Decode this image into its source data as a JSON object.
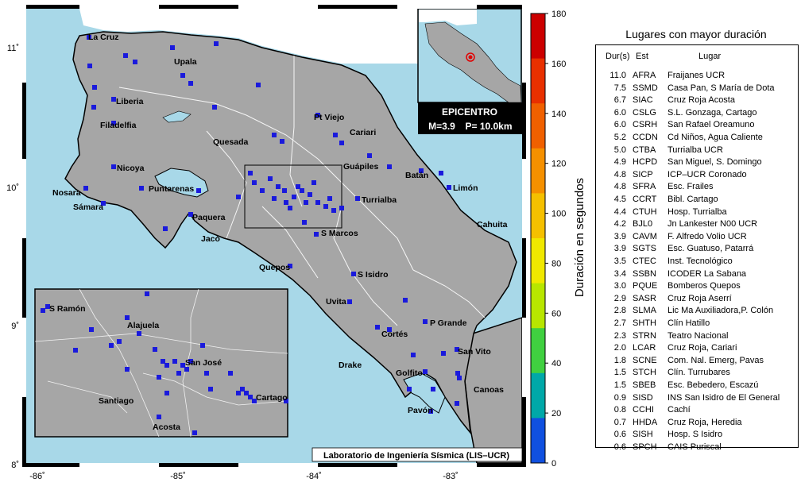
{
  "map": {
    "lon_ticks": [
      "-86˚",
      "-85˚",
      "-84˚",
      "-83˚"
    ],
    "lat_ticks": [
      "11˚",
      "10˚",
      "9˚",
      "8˚"
    ],
    "credit": "Laboratorio de Ingeniería Sísmica (LIS–UCR)",
    "place_names": {
      "la_cruz": "La Cruz",
      "upala": "Upala",
      "liberia": "Liberia",
      "filadelfia": "Filadelfia",
      "nicoya": "Nicoya",
      "nosara": "Nosara",
      "samara": "Sámara",
      "puntarenas": "Puntarenas",
      "paquera": "Paquera",
      "jaco": "Jacó",
      "quesada": "Quesada",
      "pt_viejo": "Pt Viejo",
      "cariari": "Cariari",
      "guapiles": "Guápiles",
      "batan": "Batán",
      "limon": "Limón",
      "turrialba": "Turrialba",
      "cahuita": "Cahuita",
      "s_marcos": "S Marcos",
      "quepos": "Quepos",
      "s_isidro": "S Isidro",
      "uvita": "Uvita",
      "p_grande": "P Grande",
      "cortes": "Cortés",
      "s_vito": "San Vito",
      "drake": "Drake",
      "golfito": "Golfito",
      "canoas": "Canoas",
      "pavon": "Pavón"
    },
    "inset_names": {
      "s_ramon": "S Ramón",
      "alajuela": "Alajuela",
      "san_jose": "San José",
      "santiago": "Santiago",
      "cartago": "Cartago",
      "acosta": "Acosta"
    },
    "colors": {
      "sea": "#a8d8e8",
      "land": "#a6a6a6",
      "station": "#1a1adc",
      "frame": "#000000",
      "epicenter": "#e00000"
    }
  },
  "epicenter_box": {
    "title": "EPICENTRO",
    "magnitude": "M=3.9",
    "depth": "P= 10.0km"
  },
  "colorbar": {
    "label": "Duración en segundos",
    "ticks": [
      "180",
      "160",
      "140",
      "120",
      "100",
      "80",
      "60",
      "40",
      "20",
      "0"
    ],
    "colors": [
      "#cc0000",
      "#e83000",
      "#f06000",
      "#f59000",
      "#f5c000",
      "#f0e800",
      "#b8e600",
      "#40d040",
      "#00a8a8",
      "#1050e0"
    ]
  },
  "legend": {
    "title": "Lugares con mayor duración",
    "headers": {
      "dur": "Dur(s)",
      "est": "Est",
      "lugar": "Lugar"
    },
    "rows": [
      {
        "dur": "11.0",
        "est": "AFRA",
        "lugar": "Fraijanes UCR"
      },
      {
        "dur": "7.5",
        "est": "SSMD",
        "lugar": "Casa Pan, S María de Dota"
      },
      {
        "dur": "6.7",
        "est": "SIAC",
        "lugar": "Cruz Roja Acosta"
      },
      {
        "dur": "6.0",
        "est": "CSLG",
        "lugar": "S.L. Gonzaga, Cartago"
      },
      {
        "dur": "6.0",
        "est": "CSRH",
        "lugar": "San Rafael Oreamuno"
      },
      {
        "dur": "5.2",
        "est": "CCDN",
        "lugar": "Cd Niños, Agua Caliente"
      },
      {
        "dur": "5.0",
        "est": "CTBA",
        "lugar": "Turrialba UCR"
      },
      {
        "dur": "4.9",
        "est": "HCPD",
        "lugar": "San Miguel, S. Domingo"
      },
      {
        "dur": "4.8",
        "est": "SICP",
        "lugar": "ICP–UCR Coronado"
      },
      {
        "dur": "4.8",
        "est": "SFRA",
        "lugar": "Esc. Frailes"
      },
      {
        "dur": "4.5",
        "est": "CCRT",
        "lugar": "Bibl. Cartago"
      },
      {
        "dur": "4.4",
        "est": "CTUH",
        "lugar": "Hosp. Turrialba"
      },
      {
        "dur": "4.2",
        "est": "BJL0",
        "lugar": "Jn Lankester N00 UCR"
      },
      {
        "dur": "3.9",
        "est": "CAVM",
        "lugar": "F. Alfredo Volio UCR"
      },
      {
        "dur": "3.9",
        "est": "SGTS",
        "lugar": "Esc. Guatuso, Patarrá"
      },
      {
        "dur": "3.5",
        "est": "CTEC",
        "lugar": "Inst. Tecnológico"
      },
      {
        "dur": "3.4",
        "est": "SSBN",
        "lugar": "ICODER La Sabana"
      },
      {
        "dur": "3.0",
        "est": "PQUE",
        "lugar": "Bomberos Quepos"
      },
      {
        "dur": "2.9",
        "est": "SASR",
        "lugar": "Cruz Roja Aserrí"
      },
      {
        "dur": "2.8",
        "est": "SLMA",
        "lugar": "Lic Ma Auxiliadora,P. Colón"
      },
      {
        "dur": "2.7",
        "est": "SHTH",
        "lugar": "Clín Hatillo"
      },
      {
        "dur": "2.3",
        "est": "STRN",
        "lugar": "Teatro Nacional"
      },
      {
        "dur": "2.0",
        "est": "LCAR",
        "lugar": "Cruz Roja, Cariari"
      },
      {
        "dur": "1.8",
        "est": "SCNE",
        "lugar": "Com. Nal. Emerg, Pavas"
      },
      {
        "dur": "1.5",
        "est": "STCH",
        "lugar": "Clín. Turrubares"
      },
      {
        "dur": "1.5",
        "est": "SBEB",
        "lugar": "Esc. Bebedero, Escazú"
      },
      {
        "dur": "0.9",
        "est": "SISD",
        "lugar": "INS San Isidro de El General"
      },
      {
        "dur": "0.8",
        "est": "CCHI",
        "lugar": "Cachí"
      },
      {
        "dur": "0.7",
        "est": "HHDA",
        "lugar": "Cruz Roja, Heredia"
      },
      {
        "dur": "0.6",
        "est": "SISH",
        "lugar": "Hosp. S Isidro"
      },
      {
        "dur": "0.6",
        "est": "SPCH",
        "lugar": "CAIS Puriscal"
      }
    ]
  }
}
